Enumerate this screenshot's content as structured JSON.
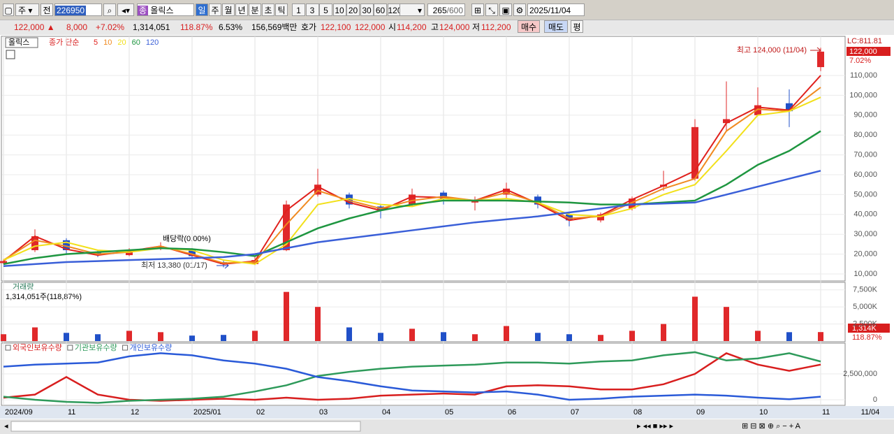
{
  "toolbar": {
    "period": "주",
    "prev": "전",
    "code": "226950",
    "name": "올릭스",
    "units": [
      "일",
      "주",
      "월",
      "년",
      "분",
      "초",
      "틱"
    ],
    "counts": [
      "1",
      "3",
      "5",
      "10",
      "20",
      "30",
      "60",
      "120"
    ],
    "shown": "265",
    "total": "/600",
    "date": "2025/11/04"
  },
  "quote": {
    "price": "122,000 ▲",
    "change": "8,000",
    "rate": "+7.02%",
    "volume": "1,314,051",
    "volume_rate": "118.87%",
    "turnover": "6.53%",
    "amount": "156,569백만",
    "bid_label": "호가",
    "ask": "122,100",
    "bid": "122,000",
    "open_label": "시",
    "open": "114,200",
    "high_label": "고",
    "high": "124,000",
    "low_label": "저",
    "low": "112,200",
    "buy": "매수",
    "sell": "매도",
    "avg": "평"
  },
  "chart_data": [
    {
      "type": "candlestick",
      "name": "올릭스",
      "legend_prefix": "종가 단순",
      "up_color": "#e0282a",
      "down_color": "#2050c8",
      "open": [
        15500,
        22000,
        27000,
        21000,
        19500,
        23000,
        22000,
        16000,
        15000,
        22000,
        50000,
        50000,
        44000,
        45000,
        51000,
        46000,
        50000,
        49000,
        40000,
        37000,
        43000,
        54000,
        58000,
        86000,
        90000,
        96000,
        114200
      ],
      "high": [
        17500,
        32500,
        28000,
        22000,
        23000,
        26000,
        23000,
        17000,
        19000,
        47000,
        63000,
        51000,
        45000,
        53000,
        52000,
        49000,
        56000,
        50000,
        41000,
        41000,
        49000,
        62000,
        88000,
        107000,
        104000,
        103000,
        124000
      ],
      "low": [
        15000,
        21000,
        20000,
        18500,
        19000,
        22000,
        18000,
        13380,
        14500,
        21500,
        49000,
        43000,
        38000,
        44000,
        45000,
        42000,
        48000,
        43000,
        34000,
        36000,
        42000,
        52000,
        57000,
        82000,
        90000,
        84000,
        112200
      ],
      "close": [
        16500,
        29000,
        22000,
        19500,
        22000,
        24000,
        19000,
        15000,
        17000,
        45000,
        55000,
        45000,
        42000,
        50000,
        48000,
        47000,
        53000,
        45000,
        37000,
        40000,
        48000,
        55000,
        84000,
        88000,
        95000,
        92000,
        122000
      ],
      "series": [
        {
          "name": "5",
          "color": "#e0201c",
          "values": [
            16500,
            29000,
            22500,
            19500,
            21500,
            24000,
            19500,
            15000,
            16500,
            42000,
            54000,
            46000,
            42000,
            49000,
            48500,
            47000,
            52500,
            45500,
            37000,
            39500,
            47500,
            54500,
            62000,
            86000,
            94000,
            92500,
            110000
          ]
        },
        {
          "name": "10",
          "color": "#f08a20",
          "values": [
            17000,
            27000,
            24000,
            20000,
            21000,
            24000,
            20000,
            15500,
            16000,
            35000,
            52000,
            47000,
            43000,
            47000,
            49000,
            47000,
            51000,
            46000,
            38000,
            39000,
            46000,
            53000,
            58000,
            82000,
            93000,
            92000,
            104000
          ]
        },
        {
          "name": "20",
          "color": "#f2e01a",
          "values": [
            17000,
            24000,
            26000,
            22000,
            21000,
            23000,
            22000,
            17000,
            15000,
            25000,
            45000,
            48000,
            45000,
            44000,
            48000,
            47000,
            48000,
            46000,
            40000,
            39000,
            43000,
            50000,
            55000,
            72000,
            90000,
            92000,
            99000
          ]
        },
        {
          "name": "60",
          "color": "#1e9640",
          "values": [
            15000,
            18000,
            20000,
            21000,
            22000,
            23000,
            22500,
            21000,
            19000,
            26000,
            33000,
            38000,
            42000,
            45000,
            47000,
            47000,
            47000,
            46500,
            46000,
            45000,
            45000,
            46000,
            47000,
            55000,
            65000,
            72000,
            82000
          ]
        },
        {
          "name": "120",
          "color": "#3a5fd8",
          "values": [
            14000,
            15000,
            16000,
            16500,
            17000,
            17500,
            18000,
            18500,
            20000,
            23000,
            26000,
            28000,
            30000,
            32000,
            34000,
            36000,
            37500,
            39000,
            41000,
            43000,
            45000,
            45500,
            46000,
            50000,
            54000,
            58000,
            62000
          ]
        }
      ],
      "ylim": [
        6500,
        129700
      ],
      "yticks": [
        {
          "value": 10000,
          "label": "10,000"
        },
        {
          "value": 20000,
          "label": "20,000"
        },
        {
          "value": 30000,
          "label": "30,000"
        },
        {
          "value": 40000,
          "label": "40,000"
        },
        {
          "value": 50000,
          "label": "50,000"
        },
        {
          "value": 60000,
          "label": "60,000"
        },
        {
          "value": 70000,
          "label": "70,000"
        },
        {
          "value": 80000,
          "label": "80,000"
        },
        {
          "value": 90000,
          "label": "90,000"
        },
        {
          "value": 100000,
          "label": "100,000"
        },
        {
          "value": 110000,
          "label": "110,000"
        }
      ],
      "grid": true,
      "annotations": [
        "최고 124,000 (11/04)",
        "배당락(0.00%)",
        "최저 13,380 (01/17)"
      ],
      "lc_label": "LC:811.81",
      "price_box": "122,000",
      "change_box": "7.02%"
    },
    {
      "type": "bar",
      "title": "거래량",
      "subtitle": "1,314,051주(118,87%)",
      "values": [
        1000000,
        2000000,
        1200000,
        1000000,
        1500000,
        1300000,
        800000,
        900000,
        1500000,
        7200000,
        5000000,
        2000000,
        1200000,
        1800000,
        1300000,
        1000000,
        2200000,
        1200000,
        1000000,
        900000,
        1500000,
        2500000,
        6500000,
        5000000,
        1500000,
        1300000,
        1314051
      ],
      "ylim": [
        0,
        8600000
      ],
      "yticks": [
        {
          "value": 2500000,
          "label": "2,500K"
        },
        {
          "value": 5000000,
          "label": "5,000K"
        },
        {
          "value": 7500000,
          "label": "7,500K"
        }
      ],
      "last_box": "1,314K",
      "rate_box": "118.87%"
    },
    {
      "type": "line",
      "categories": [
        "2024/09",
        null,
        "11",
        null,
        "12",
        null,
        "2025/01",
        null,
        "02",
        null,
        "03",
        null,
        "04",
        null,
        "05",
        null,
        "06",
        null,
        "07",
        null,
        "08",
        null,
        "09",
        null,
        "10",
        null,
        "11"
      ],
      "end_label": "11/04",
      "series": [
        {
          "name": "외국인보유수량",
          "color": "#d81e1e",
          "values": [
            200000,
            500000,
            2200000,
            500000,
            0,
            -100000,
            0,
            100000,
            0,
            200000,
            0,
            100000,
            400000,
            500000,
            600000,
            500000,
            1300000,
            1400000,
            1300000,
            1000000,
            1000000,
            1500000,
            2500000,
            4500000,
            3400000,
            2800000,
            3400000
          ]
        },
        {
          "name": "기관보유수량",
          "color": "#2e9a5a",
          "values": [
            300000,
            0,
            -200000,
            -300000,
            -100000,
            0,
            100000,
            300000,
            800000,
            1400000,
            2300000,
            2700000,
            3000000,
            3200000,
            3300000,
            3400000,
            3600000,
            3600000,
            3500000,
            3700000,
            3800000,
            4300000,
            4600000,
            3800000,
            4000000,
            4500000,
            3700000
          ]
        },
        {
          "name": "개인보유수량",
          "color": "#2a5ad8",
          "values": [
            3200000,
            3400000,
            3500000,
            3600000,
            4200000,
            4500000,
            4300000,
            3800000,
            3500000,
            3000000,
            2200000,
            1800000,
            1300000,
            900000,
            800000,
            700000,
            800000,
            500000,
            0,
            100000,
            300000,
            400000,
            500000,
            400000,
            200000,
            50000,
            300000
          ]
        }
      ],
      "ylim": [
        -540000,
        5340000
      ],
      "yticks": [
        0,
        {
          "value": 2500000,
          "label": "2,500,000"
        }
      ]
    }
  ]
}
